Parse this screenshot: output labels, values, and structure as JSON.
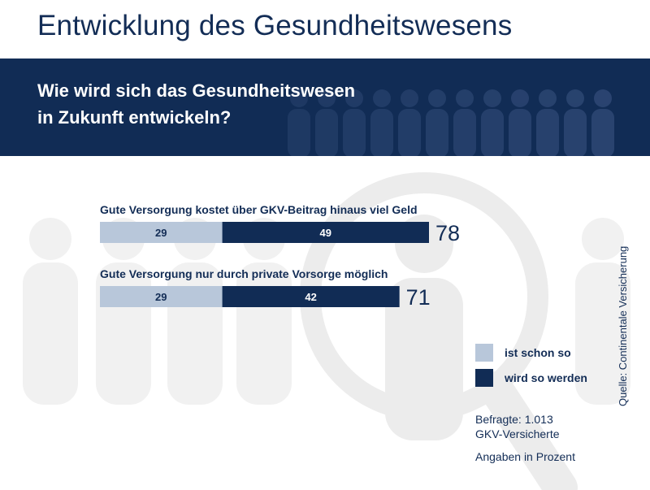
{
  "title": "Entwicklung des Gesundheitswesens",
  "question_line1": "Wie wird sich das Gesundheitswesen",
  "question_line2": "in Zukunft entwickeln?",
  "legend": [
    {
      "label": "ist schon so",
      "color": "#b8c7da"
    },
    {
      "label": "wird so werden",
      "color": "#112c55"
    }
  ],
  "notes": {
    "respondents_line1": "Befragte: 1.013",
    "respondents_line2": "GKV-Versicherte",
    "unit": "Angaben in Prozent"
  },
  "source": "Quelle: Continentale Versicherung",
  "chart_data": {
    "type": "bar",
    "orientation": "horizontal",
    "stacked": true,
    "categories": [
      "Gute Versorgung kostet über GKV-Beitrag hinaus viel Geld",
      "Gute Versorgung nur durch private Vorsorge möglich"
    ],
    "series": [
      {
        "name": "ist schon so",
        "values": [
          29,
          29
        ],
        "color": "#b8c7da"
      },
      {
        "name": "wird so werden",
        "values": [
          49,
          42
        ],
        "color": "#112c55"
      }
    ],
    "totals": [
      78,
      71
    ],
    "xlim": [
      0,
      78
    ],
    "legend_position": "right"
  }
}
